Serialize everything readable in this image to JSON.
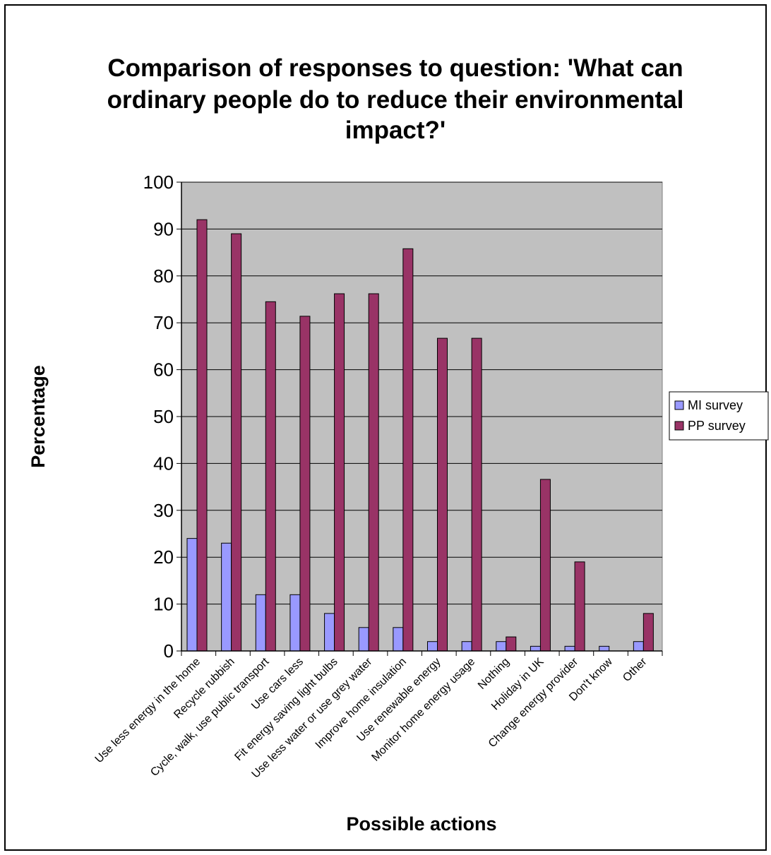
{
  "chart_data": {
    "type": "bar",
    "title": "Comparison of responses to question: 'What can ordinary people do to reduce their environmental impact?'",
    "title_lines": [
      "Comparison of responses to question: 'What can",
      "ordinary people do to reduce their environmental",
      "impact?'"
    ],
    "xlabel": "Possible actions",
    "ylabel": "Percentage",
    "ylim": [
      0,
      100
    ],
    "yticks": [
      0,
      10,
      20,
      30,
      40,
      50,
      60,
      70,
      80,
      90,
      100
    ],
    "grid": true,
    "legend_position": "right",
    "categories": [
      "Use less energy in the home",
      "Recycle rubbish",
      "Cycle, walk, use public transport",
      "Use cars less",
      "Fit energy saving light bulbs",
      "Use less water or use grey water",
      "Improve home insulation",
      "Use renewable energy",
      "Monitor home energy usage",
      "Nothing",
      "Holiday in UK",
      "Change energy provider",
      "Don't know",
      "Other"
    ],
    "series": [
      {
        "name": "MI survey",
        "color": "#9999ff",
        "values": [
          24,
          23,
          12,
          12,
          8,
          5,
          5,
          2,
          2,
          2,
          1,
          1,
          1,
          2
        ]
      },
      {
        "name": "PP survey",
        "color": "#993366",
        "values": [
          92,
          89,
          74.5,
          71.4,
          76.2,
          76.2,
          85.8,
          66.7,
          66.7,
          3,
          36.6,
          19,
          0,
          8
        ]
      }
    ],
    "plot_background": "#c0c0c0"
  }
}
